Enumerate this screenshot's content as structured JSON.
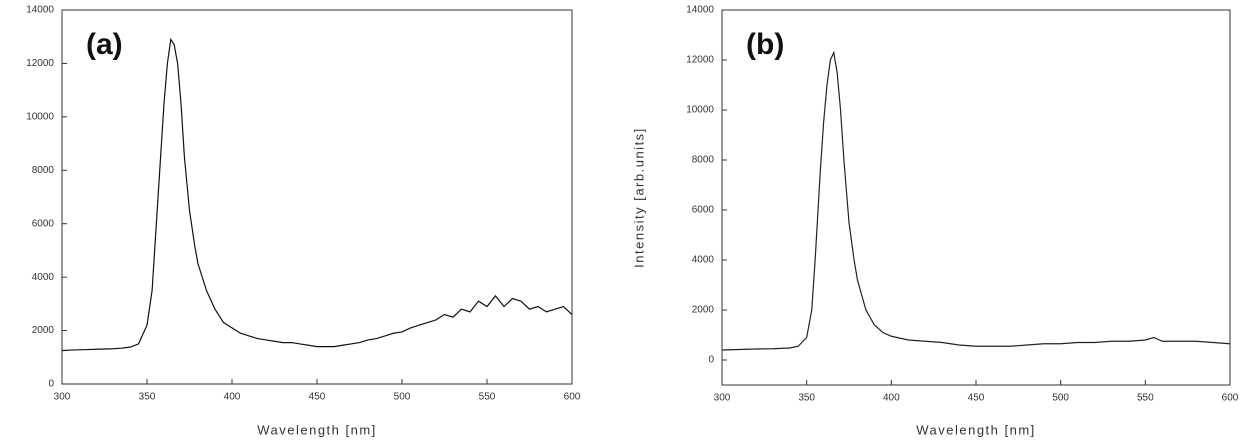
{
  "chart_data": [
    {
      "type": "line",
      "annotation": "(a)",
      "x_label": "Wavelength [nm]",
      "xlim": [
        300,
        600
      ],
      "xticks": [
        300,
        350,
        400,
        450,
        500,
        550,
        600
      ],
      "ylim": [
        0,
        14000
      ],
      "yticks": [
        0,
        2000,
        4000,
        6000,
        8000,
        10000,
        12000,
        14000
      ],
      "x": [
        300,
        305,
        310,
        315,
        320,
        325,
        330,
        335,
        340,
        345,
        350,
        353,
        355,
        358,
        360,
        362,
        364,
        366,
        368,
        370,
        372,
        375,
        378,
        380,
        385,
        390,
        395,
        400,
        405,
        410,
        415,
        420,
        425,
        430,
        435,
        440,
        445,
        450,
        455,
        460,
        465,
        470,
        475,
        480,
        485,
        490,
        495,
        500,
        505,
        510,
        515,
        520,
        525,
        530,
        535,
        540,
        545,
        550,
        555,
        560,
        565,
        570,
        575,
        580,
        585,
        590,
        595,
        600
      ],
      "series": [
        {
          "color": "#111111",
          "values": [
            1250,
            1270,
            1280,
            1290,
            1300,
            1310,
            1320,
            1340,
            1380,
            1500,
            2200,
            3500,
            5500,
            8500,
            10500,
            12000,
            12900,
            12700,
            12000,
            10500,
            8500,
            6500,
            5200,
            4500,
            3500,
            2800,
            2300,
            2100,
            1900,
            1800,
            1700,
            1650,
            1600,
            1550,
            1550,
            1500,
            1450,
            1400,
            1400,
            1400,
            1450,
            1500,
            1550,
            1650,
            1700,
            1800,
            1900,
            1950,
            2100,
            2200,
            2300,
            2400,
            2600,
            2500,
            2800,
            2700,
            3100,
            2900,
            3300,
            2900,
            3200,
            3100,
            2800,
            2900,
            2700,
            2800,
            2900,
            2600
          ]
        }
      ]
    },
    {
      "type": "line",
      "annotation": "(b)",
      "x_label": "Wavelength [nm]",
      "y_label": "Intensity [arb.units]",
      "xlim": [
        300,
        600
      ],
      "xticks": [
        300,
        350,
        400,
        450,
        500,
        550,
        600
      ],
      "ylim": [
        -1000,
        14000
      ],
      "yticks": [
        0,
        2000,
        4000,
        6000,
        8000,
        10000,
        12000,
        14000
      ],
      "x": [
        300,
        310,
        320,
        330,
        340,
        345,
        350,
        353,
        355,
        358,
        360,
        362,
        364,
        366,
        368,
        370,
        372,
        375,
        378,
        380,
        385,
        390,
        395,
        400,
        410,
        420,
        430,
        440,
        450,
        460,
        470,
        480,
        490,
        500,
        510,
        520,
        530,
        540,
        550,
        555,
        560,
        570,
        580,
        590,
        600
      ],
      "series": [
        {
          "color": "#222222",
          "values": [
            400,
            420,
            440,
            450,
            480,
            550,
            900,
            2000,
            4000,
            7500,
            9500,
            11000,
            12000,
            12300,
            11500,
            10000,
            8000,
            5500,
            4000,
            3200,
            2000,
            1400,
            1100,
            950,
            800,
            750,
            700,
            600,
            550,
            550,
            550,
            600,
            650,
            650,
            700,
            700,
            750,
            750,
            800,
            900,
            750,
            750,
            750,
            700,
            650
          ]
        }
      ]
    }
  ]
}
